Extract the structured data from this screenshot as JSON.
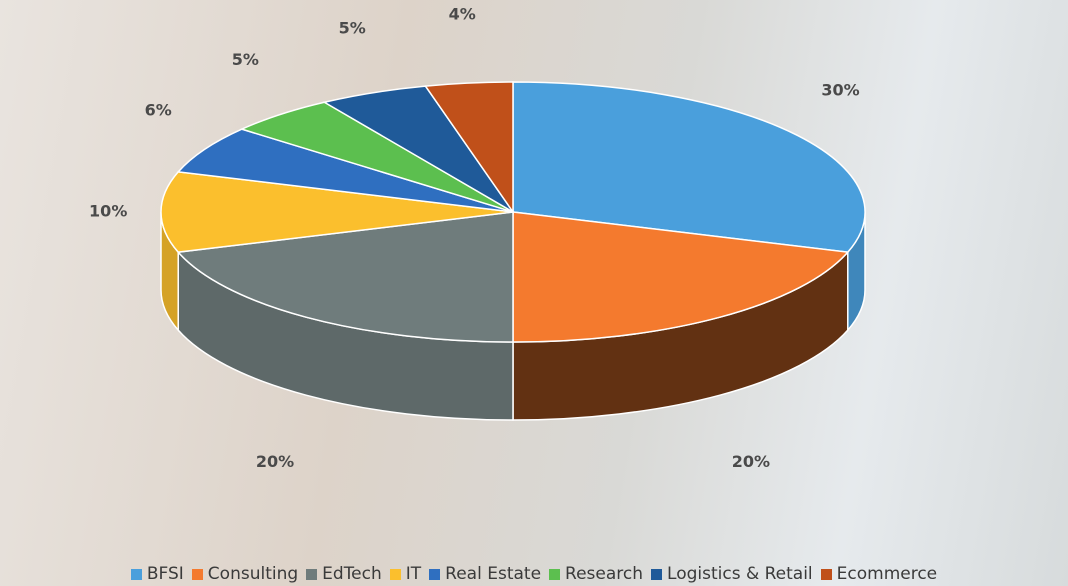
{
  "chart_data": {
    "type": "pie3d",
    "categories": [
      "BFSI",
      "Consulting",
      "EdTech",
      "IT",
      "Real Estate",
      "Research",
      "Logistics & Retail",
      "Ecommerce"
    ],
    "values": [
      30,
      20,
      20,
      10,
      6,
      5,
      5,
      4
    ],
    "value_labels": [
      "30%",
      "20%",
      "20%",
      "10%",
      "6%",
      "5%",
      "5%",
      "4%"
    ],
    "colors": [
      "#4a9fdc",
      "#f47a2e",
      "#6f7c7c",
      "#fbbf2d",
      "#2f6fc0",
      "#5cbf4f",
      "#1f5a99",
      "#c0501a"
    ]
  }
}
